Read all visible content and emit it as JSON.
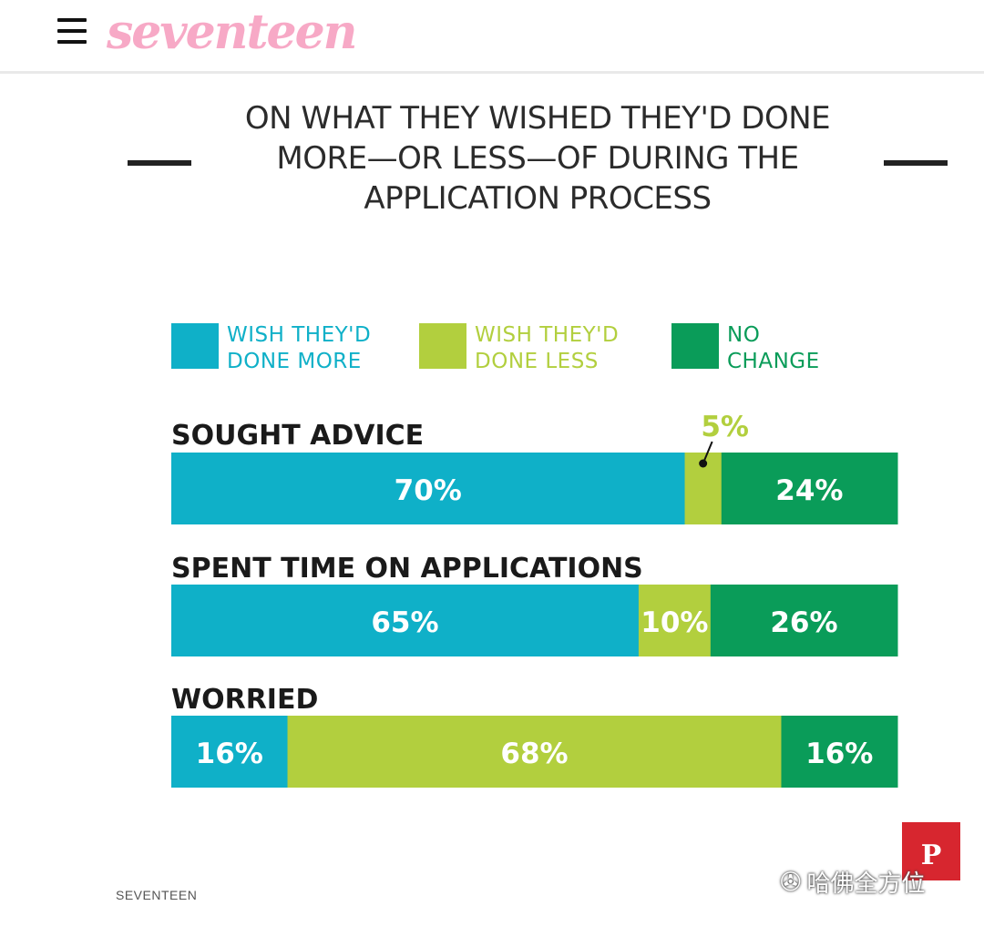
{
  "header": {
    "logo_text": "seventeen",
    "menu_icon": "hamburger-menu-icon"
  },
  "title": "ON WHAT THEY WISHED THEY'D DONE MORE—OR LESS—OF DURING THE APPLICATION PROCESS",
  "colors": {
    "more": "#0fb0c8",
    "less": "#b2cf3e",
    "nochange": "#0a9c59",
    "logo": "#f7a9c6"
  },
  "chart_data": {
    "type": "bar",
    "orientation": "horizontal-stacked-100",
    "title": "ON WHAT THEY WISHED THEY'D DONE MORE—OR LESS—OF DURING THE APPLICATION PROCESS",
    "legend": {
      "placement": "top",
      "entries": [
        {
          "key": "more",
          "line1": "WISH THEY'D",
          "line2": "DONE MORE"
        },
        {
          "key": "less",
          "line1": "WISH THEY'D",
          "line2": "DONE LESS"
        },
        {
          "key": "nochange",
          "line1": "NO",
          "line2": "CHANGE"
        }
      ]
    },
    "categories": [
      "SOUGHT ADVICE",
      "SPENT TIME ON APPLICATIONS",
      "WORRIED"
    ],
    "series": [
      {
        "name": "WISH THEY'D DONE MORE",
        "key": "more",
        "values": [
          70,
          65,
          16
        ]
      },
      {
        "name": "WISH THEY'D DONE LESS",
        "key": "less",
        "values": [
          5,
          10,
          68
        ]
      },
      {
        "name": "NO CHANGE",
        "key": "nochange",
        "values": [
          24,
          26,
          16
        ]
      }
    ],
    "labels": [
      [
        "70%",
        "5%",
        "24%"
      ],
      [
        "65%",
        "10%",
        "26%"
      ],
      [
        "16%",
        "68%",
        "16%"
      ]
    ],
    "xlim": [
      0,
      100
    ],
    "grid": false
  },
  "source": "SEVENTEEN",
  "watermark": "哈佛全方位",
  "pinterest_label": "P"
}
